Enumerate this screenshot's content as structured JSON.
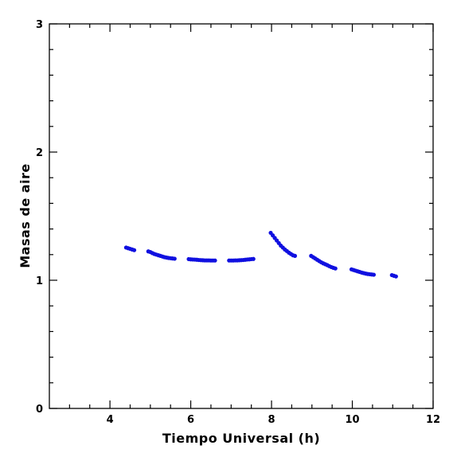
{
  "chart_data": {
    "type": "scatter",
    "xlabel": "Tiempo Universal (h)",
    "ylabel": "Masas de aire",
    "xlim": [
      2.5,
      12
    ],
    "ylim": [
      0,
      3
    ],
    "x_ticks": [
      "4",
      "6",
      "8",
      "10",
      "12"
    ],
    "y_ticks": [
      "0",
      "1",
      "2",
      "3"
    ],
    "grid": false,
    "marker_color": "#1010e0",
    "series": [
      {
        "x": [
          4.4,
          4.45,
          4.5,
          4.55,
          4.6,
          4.95,
          5.0,
          5.05,
          5.1,
          5.15,
          5.2,
          5.25,
          5.3,
          5.35,
          5.4,
          5.45,
          5.5,
          5.55,
          5.6,
          5.95,
          6.0,
          6.05,
          6.1,
          6.15,
          6.2,
          6.25,
          6.3,
          6.35,
          6.4,
          6.45,
          6.5,
          6.55,
          6.6,
          6.95,
          7.0,
          7.05,
          7.1,
          7.15,
          7.2,
          7.25,
          7.3,
          7.35,
          7.4,
          7.45,
          7.5,
          7.55,
          7.98,
          8.03,
          8.08,
          8.13,
          8.18,
          8.23,
          8.28,
          8.33,
          8.38,
          8.43,
          8.48,
          8.53,
          8.58,
          8.98,
          9.03,
          9.08,
          9.13,
          9.18,
          9.23,
          9.28,
          9.33,
          9.38,
          9.43,
          9.48,
          9.53,
          9.58,
          9.98,
          10.03,
          10.08,
          10.13,
          10.18,
          10.23,
          10.28,
          10.33,
          10.38,
          10.43,
          10.48,
          10.53,
          10.98,
          11.03,
          11.08
        ],
        "y": [
          1.255,
          1.25,
          1.245,
          1.24,
          1.235,
          1.225,
          1.22,
          1.212,
          1.205,
          1.2,
          1.195,
          1.19,
          1.185,
          1.18,
          1.177,
          1.174,
          1.172,
          1.17,
          1.168,
          1.165,
          1.163,
          1.162,
          1.161,
          1.16,
          1.158,
          1.157,
          1.156,
          1.155,
          1.155,
          1.155,
          1.154,
          1.154,
          1.154,
          1.154,
          1.154,
          1.154,
          1.155,
          1.155,
          1.156,
          1.157,
          1.158,
          1.16,
          1.162,
          1.163,
          1.165,
          1.166,
          1.37,
          1.35,
          1.33,
          1.31,
          1.29,
          1.27,
          1.255,
          1.24,
          1.228,
          1.215,
          1.205,
          1.195,
          1.19,
          1.19,
          1.18,
          1.17,
          1.16,
          1.15,
          1.14,
          1.132,
          1.125,
          1.118,
          1.11,
          1.103,
          1.097,
          1.092,
          1.085,
          1.08,
          1.075,
          1.07,
          1.065,
          1.06,
          1.056,
          1.052,
          1.049,
          1.047,
          1.045,
          1.043,
          1.04,
          1.035,
          1.03
        ]
      }
    ]
  }
}
